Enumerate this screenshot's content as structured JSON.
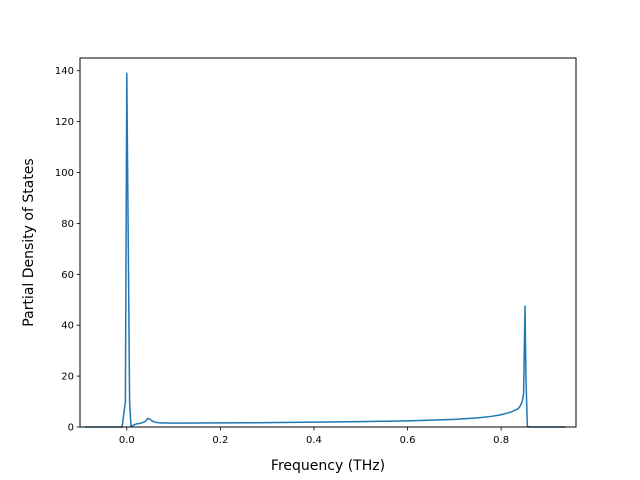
{
  "chart_data": {
    "type": "line",
    "title": "",
    "xlabel": "Frequency (THz)",
    "ylabel": "Partial Density of States",
    "xlim": [
      -0.1,
      0.96
    ],
    "ylim": [
      0,
      145
    ],
    "xticks": [
      0.0,
      0.2,
      0.4,
      0.6,
      0.8
    ],
    "xtick_labels": [
      "0.0",
      "0.2",
      "0.4",
      "0.6",
      "0.8"
    ],
    "yticks": [
      0,
      20,
      40,
      60,
      80,
      100,
      120,
      140
    ],
    "ytick_labels": [
      "0",
      "20",
      "40",
      "60",
      "80",
      "100",
      "120",
      "140"
    ],
    "grid": false,
    "legend": "none",
    "series": [
      {
        "color": "#1f77b4",
        "x": [
          -0.09,
          -0.01,
          -0.003,
          0.0,
          0.003,
          0.006,
          0.009,
          0.012,
          0.02,
          0.03,
          0.04,
          0.045,
          0.05,
          0.055,
          0.06,
          0.07,
          0.1,
          0.2,
          0.3,
          0.4,
          0.5,
          0.6,
          0.65,
          0.7,
          0.75,
          0.78,
          0.8,
          0.82,
          0.835,
          0.84,
          0.845,
          0.848,
          0.851,
          0.853,
          0.856,
          0.86,
          0.9,
          0.937
        ],
        "y": [
          0,
          0,
          10,
          139,
          75,
          10,
          0.3,
          0.5,
          1.2,
          1.5,
          2.2,
          3.4,
          3.0,
          2.3,
          1.9,
          1.6,
          1.5,
          1.6,
          1.7,
          1.9,
          2.1,
          2.4,
          2.7,
          3.0,
          3.6,
          4.2,
          4.8,
          5.8,
          7.0,
          8.0,
          10.0,
          13.0,
          47.5,
          20.0,
          0.3,
          0,
          0,
          0
        ]
      }
    ]
  }
}
